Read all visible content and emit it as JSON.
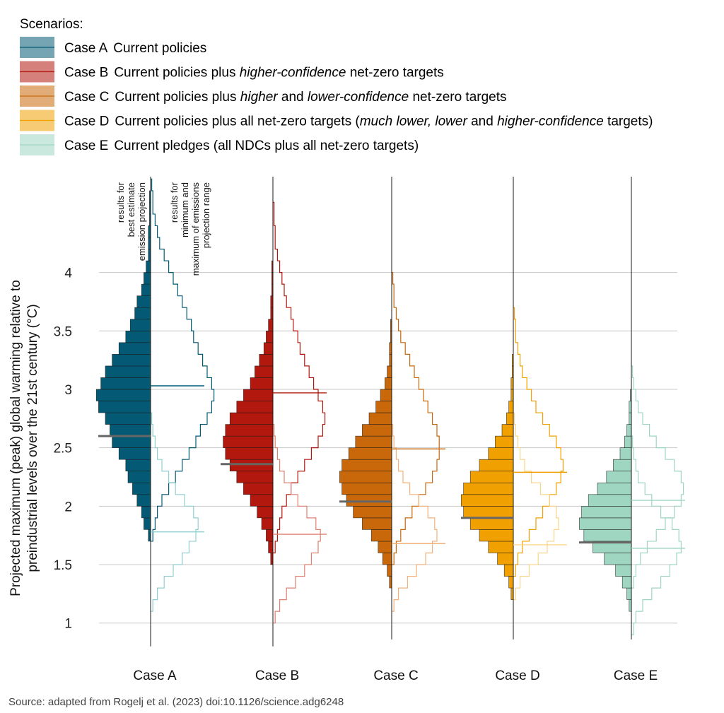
{
  "chart_data": {
    "type": "histogram-violin",
    "legend": {
      "title": "Scenarios:",
      "entries": [
        {
          "case": "Case A",
          "parts": [
            {
              "t": "Current policies",
              "i": false
            }
          ]
        },
        {
          "case": "Case B",
          "parts": [
            {
              "t": "Current policies plus ",
              "i": false
            },
            {
              "t": "higher-confidence",
              "i": true
            },
            {
              "t": " net-zero targets",
              "i": false
            }
          ]
        },
        {
          "case": "Case C",
          "parts": [
            {
              "t": "Current policies plus ",
              "i": false
            },
            {
              "t": "higher",
              "i": true
            },
            {
              "t": " and ",
              "i": false
            },
            {
              "t": "lower-confidence",
              "i": true
            },
            {
              "t": " net-zero targets",
              "i": false
            }
          ]
        },
        {
          "case": "Case D",
          "parts": [
            {
              "t": "Current policies plus all net-zero targets (",
              "i": false
            },
            {
              "t": "much lower, lower",
              "i": true
            },
            {
              "t": " and ",
              "i": false
            },
            {
              "t": "higher-confidence",
              "i": true
            },
            {
              "t": " targets)",
              "i": false
            }
          ]
        },
        {
          "case": "Case E",
          "parts": [
            {
              "t": "Current pledges (all NDCs plus all net-zero targets)",
              "i": false
            }
          ]
        }
      ]
    },
    "ylabel_lines": [
      "Projected maximum (peak) global warming relative to",
      "preindustrial levels over the 21st century (°C)"
    ],
    "yticks": [
      1,
      1.5,
      2,
      2.5,
      3,
      3.5,
      4
    ],
    "ytick_labels": [
      "1",
      "1.5",
      "2",
      "2.5",
      "3",
      "3.5",
      "4"
    ],
    "ylim": [
      0.72,
      4.82
    ],
    "bin_width": 0.1,
    "annotations": {
      "left": [
        "results for",
        "best estimate",
        "emission projection"
      ],
      "right": [
        "results for",
        "minimum and",
        "maximum of emissions",
        "projection range"
      ]
    },
    "source": "Source: adapted from Rogelj et al. (2023) doi:10.1126/science.adg6248",
    "cases": [
      {
        "name": "Case A",
        "color": "#045a75",
        "light": "#8fd0cf",
        "range": [
          0.8,
          4.82
        ],
        "best_median": 2.6,
        "max_median": 3.03,
        "min_median": 1.78,
        "best_bins_start": 1.7,
        "best_bins": [
          1,
          3,
          4,
          6,
          8,
          10,
          11,
          14,
          17,
          18,
          20,
          23,
          24,
          22,
          20,
          17,
          14,
          11,
          9,
          7,
          6,
          4,
          3,
          2,
          1,
          1,
          1,
          0.5,
          0.5,
          0.5
        ],
        "max_bins_start": 1.7,
        "max_bins": [
          1,
          2,
          3,
          5,
          8,
          11,
          14,
          17,
          20,
          22,
          25,
          27,
          28,
          27,
          25,
          23,
          21,
          19,
          18,
          16,
          14,
          12,
          10,
          8,
          6,
          4,
          3,
          2,
          1,
          1,
          0.5
        ],
        "min_bins_start": 1.1,
        "min_bins": [
          1,
          3,
          6,
          10,
          14,
          17,
          20,
          21,
          19,
          15,
          11,
          8,
          5,
          3,
          2,
          1,
          0.5
        ]
      },
      {
        "name": "Case B",
        "color": "#b3180e",
        "light": "#e08070",
        "range": [
          0.8,
          4.82
        ],
        "best_median": 2.36,
        "max_median": 2.97,
        "min_median": 1.76,
        "best_bins_start": 1.5,
        "best_bins": [
          1,
          2,
          3,
          5,
          7,
          10,
          13,
          16,
          19,
          21,
          22,
          21,
          19,
          16,
          13,
          10,
          8,
          6,
          4,
          3,
          2,
          1,
          1,
          0.5,
          0.5,
          0.5
        ],
        "max_bins_start": 1.6,
        "max_bins": [
          1,
          2,
          3,
          4,
          6,
          8,
          11,
          14,
          17,
          20,
          22,
          23,
          22,
          20,
          18,
          16,
          14,
          12,
          11,
          9,
          8,
          6,
          5,
          4,
          3,
          2,
          1,
          1,
          0.5,
          0.5
        ],
        "min_bins_start": 1.0,
        "min_bins": [
          1,
          3,
          6,
          10,
          14,
          17,
          20,
          21,
          19,
          15,
          11,
          8,
          5,
          3,
          2,
          1,
          0.5
        ]
      },
      {
        "name": "Case C",
        "color": "#c8680a",
        "light": "#f2b27a",
        "range": [
          0.86,
          4.82
        ],
        "best_median": 2.04,
        "max_median": 2.49,
        "min_median": 1.68,
        "best_bins_start": 1.3,
        "best_bins": [
          1,
          2,
          4,
          6,
          9,
          13,
          17,
          20,
          22,
          23,
          22,
          19,
          16,
          13,
          10,
          7,
          5,
          3,
          2,
          1,
          1,
          0.5,
          0.5
        ],
        "max_bins_start": 1.5,
        "max_bins": [
          1,
          2,
          4,
          6,
          9,
          12,
          15,
          18,
          20,
          21,
          21,
          20,
          18,
          16,
          14,
          12,
          10,
          8,
          6,
          4,
          3,
          2,
          1,
          1,
          0.5
        ],
        "min_bins_start": 1.1,
        "min_bins": [
          1,
          3,
          7,
          11,
          15,
          18,
          20,
          19,
          16,
          12,
          8,
          5,
          3,
          2,
          1,
          0.5
        ]
      },
      {
        "name": "Case D",
        "color": "#f0a000",
        "light": "#fad58a",
        "range": [
          0.86,
          4.82
        ],
        "best_median": 1.9,
        "max_median": 2.29,
        "min_median": 1.67,
        "best_bins_start": 1.2,
        "best_bins": [
          1,
          2,
          4,
          7,
          11,
          15,
          19,
          22,
          23,
          22,
          19,
          15,
          11,
          8,
          5,
          3,
          2,
          1,
          1,
          0.5,
          0.5
        ],
        "max_bins_start": 1.4,
        "max_bins": [
          1,
          2,
          4,
          7,
          10,
          13,
          16,
          19,
          21,
          22,
          21,
          19,
          16,
          13,
          10,
          8,
          6,
          4,
          3,
          2,
          1,
          1,
          0.5
        ],
        "min_bins_start": 1.2,
        "min_bins": [
          1,
          3,
          7,
          11,
          15,
          18,
          20,
          19,
          16,
          12,
          8,
          5,
          3,
          2,
          1,
          0.5
        ]
      },
      {
        "name": "Case E",
        "color": "#9ed6c2",
        "light": "#9ed6c2",
        "range": [
          0.86,
          4.82
        ],
        "best_median": 1.69,
        "max_median": 2.05,
        "min_median": 1.64,
        "best_bins_start": 1.1,
        "best_bins": [
          1,
          2,
          4,
          7,
          12,
          17,
          21,
          23,
          22,
          19,
          15,
          11,
          8,
          5,
          3,
          2,
          1,
          1,
          0.5
        ],
        "max_bins_start": 1.3,
        "max_bins": [
          1,
          2,
          4,
          7,
          11,
          15,
          19,
          22,
          23,
          22,
          19,
          15,
          11,
          8,
          5,
          3,
          2,
          1,
          0.5
        ],
        "min_bins_start": 0.9,
        "min_bins": [
          1,
          2,
          5,
          9,
          13,
          17,
          20,
          22,
          21,
          18,
          13,
          9,
          6,
          3,
          2,
          1,
          0.5
        ]
      }
    ]
  }
}
